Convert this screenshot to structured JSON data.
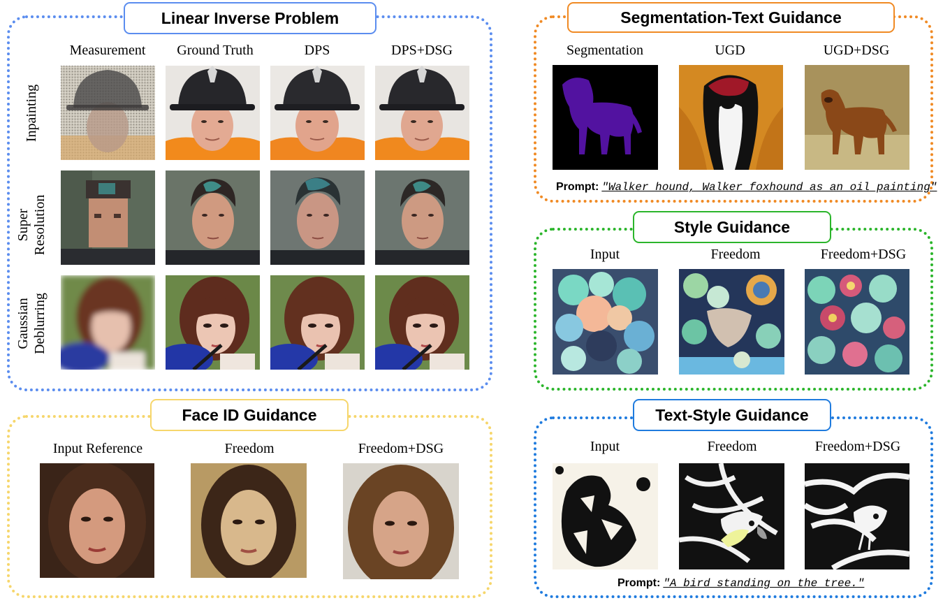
{
  "linear": {
    "title": "Linear Inverse Problem",
    "color": "#5b8def",
    "columns": [
      "Measurement",
      "Ground Truth",
      "DPS",
      "DPS+DSG"
    ],
    "rows": [
      [
        "Inpainting"
      ],
      [
        "Super",
        "Resolution"
      ],
      [
        "Gaussian",
        "Deblurring"
      ]
    ]
  },
  "segtext": {
    "title": "Segmentation-Text Guidance",
    "color": "#f08a24",
    "columns": [
      "Segmentation",
      "UGD",
      "UGD+DSG"
    ],
    "prompt_label": "Prompt:",
    "prompt_text": "\"Walker hound, Walker foxhound as an oil painting\""
  },
  "style": {
    "title": "Style Guidance",
    "color": "#2bb52b",
    "columns": [
      "Input",
      "Freedom",
      "Freedom+DSG"
    ]
  },
  "faceid": {
    "title": "Face ID Guidance",
    "color": "#f6d66b",
    "columns": [
      "Input Reference",
      "Freedom",
      "Freedom+DSG"
    ]
  },
  "textstyle": {
    "title": "Text-Style Guidance",
    "color": "#1f7bde",
    "columns": [
      "Input",
      "Freedom",
      "Freedom+DSG"
    ],
    "prompt_label": "Prompt:",
    "prompt_text": "\"A bird standing on the tree.\""
  }
}
